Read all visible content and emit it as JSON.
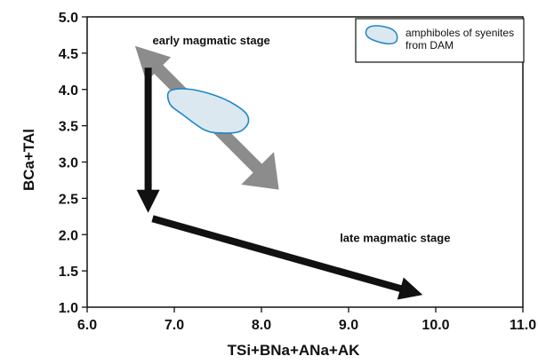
{
  "chart_data": {
    "type": "scatter",
    "xlabel": "TSi+BNa+ANa+AK",
    "ylabel": "BCa+TAl",
    "xlim": [
      6.0,
      11.0
    ],
    "ylim": [
      1.0,
      5.0
    ],
    "x_ticks": [
      "6.0",
      "7.0",
      "8.0",
      "9.0",
      "10.0",
      "11.0"
    ],
    "y_ticks": [
      "1.0",
      "1.5",
      "2.0",
      "2.5",
      "3.0",
      "3.5",
      "4.0",
      "4.5",
      "5.0"
    ],
    "grid": false,
    "legend_position": "top-right",
    "legend": [
      {
        "label_line1": "amphiboles of syenites",
        "label_line2": "from DAM",
        "fill": "#dce8f0",
        "stroke": "#1f86c7"
      }
    ],
    "field": {
      "name": "amphiboles of syenites from DAM",
      "fill": "#dce8f0",
      "stroke": "#1f86c7",
      "outline": [
        [
          6.95,
          3.98
        ],
        [
          7.2,
          4.0
        ],
        [
          7.55,
          3.88
        ],
        [
          7.8,
          3.7
        ],
        [
          7.85,
          3.55
        ],
        [
          7.75,
          3.42
        ],
        [
          7.55,
          3.4
        ],
        [
          7.35,
          3.44
        ],
        [
          7.1,
          3.65
        ],
        [
          6.95,
          3.8
        ]
      ]
    },
    "arrows": [
      {
        "name": "grey-trend-arrow",
        "from": [
          6.55,
          4.6
        ],
        "to": [
          8.2,
          2.62
        ],
        "color": "#8c8c8c"
      },
      {
        "name": "black-vertical-arrow",
        "from": [
          6.7,
          4.3
        ],
        "to": [
          6.7,
          2.3
        ],
        "color": "#111111"
      },
      {
        "name": "black-late-arrow",
        "from": [
          6.75,
          2.22
        ],
        "to": [
          9.85,
          1.17
        ],
        "color": "#111111"
      }
    ],
    "annotations": [
      {
        "text": "early magmatic stage",
        "x": 6.75,
        "y": 4.62
      },
      {
        "text": "late magmatic stage",
        "x": 8.9,
        "y": 1.9
      }
    ]
  }
}
